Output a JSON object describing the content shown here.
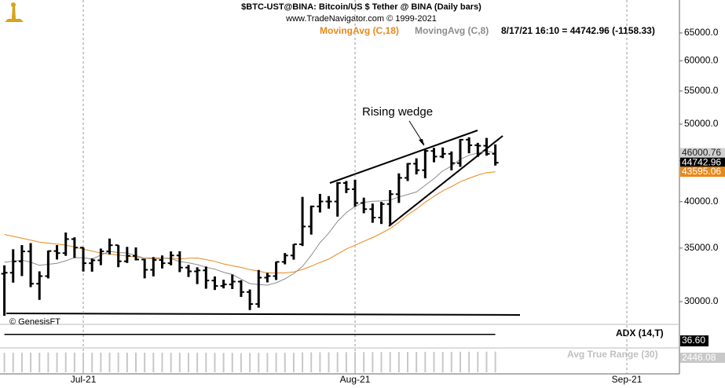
{
  "chart_data": {
    "type": "ohlc",
    "title": "$BTC-UST@BINA:  Bitcoin/US $ Tether @ BINA  (Daily bars)",
    "subtitle": "www.TradeNavigator.com © 1999-2021",
    "status": "8/17/21 16:10 = 44742.96 (-1158.33)",
    "annotation": "Rising wedge",
    "credit": "© GenesisFT",
    "categories": [
      null,
      null,
      null,
      null,
      null,
      null,
      null,
      null,
      null,
      null,
      null,
      null,
      null,
      null,
      null,
      null,
      null,
      null,
      null,
      null,
      null,
      null,
      null,
      null,
      null,
      null,
      null,
      null,
      null,
      null,
      null,
      null,
      null,
      null,
      null,
      null,
      null,
      null,
      null,
      null,
      null,
      null,
      null,
      null,
      null,
      null,
      null,
      null,
      null,
      null,
      null,
      null,
      null,
      null,
      null,
      null,
      null
    ],
    "open": [
      32505,
      32600,
      33680,
      34663,
      31584,
      32283,
      34700,
      34494,
      35911,
      35045,
      33502,
      33786,
      34669,
      35288,
      33690,
      34220,
      33863,
      32877,
      33815,
      33502,
      34259,
      33086,
      32729,
      32820,
      31874,
      31383,
      31520,
      31778,
      30839,
      29790,
      32144,
      32287,
      33634,
      34258,
      35381,
      37237,
      39456,
      40019,
      40016,
      42206,
      41461,
      39850,
      39146,
      38208,
      39723,
      40867,
      42836,
      44614,
      43795,
      46280,
      45543,
      45903,
      44695,
      47810,
      47054,
      46982,
      45901
    ],
    "high": [
      33298,
      34881,
      35298,
      35500,
      32730,
      34749,
      35297,
      36600,
      36100,
      35057,
      33977,
      34945,
      35967,
      35293,
      35118,
      35059,
      33929,
      34100,
      34262,
      34666,
      34678,
      33340,
      33114,
      33185,
      32249,
      31950,
      32435,
      31899,
      31063,
      32858,
      32591,
      33650,
      34500,
      35398,
      40550,
      39542,
      40900,
      40640,
      42316,
      42448,
      42599,
      40459,
      39780,
      39969,
      41350,
      43392,
      44700,
      45310,
      46454,
      46700,
      46743,
      46218,
      47886,
      48144,
      47373,
      48053,
      47160
    ],
    "low": [
      28805,
      31683,
      32286,
      31275,
      30151,
      32071,
      33862,
      34225,
      34017,
      32711,
      32699,
      33316,
      34357,
      33125,
      33532,
      33777,
      32077,
      32261,
      33004,
      33306,
      32658,
      32203,
      31550,
      31133,
      31020,
      31164,
      31108,
      30407,
      29278,
      29482,
      31708,
      31924,
      33401,
      33851,
      35205,
      36383,
      38772,
      39200,
      38313,
      41000,
      39422,
      38690,
      37642,
      37508,
      37332,
      39853,
      42446,
      43261,
      42779,
      44800,
      45341,
      43770,
      44217,
      45971,
      45500,
      45660,
      44376
    ],
    "close": [
      32600,
      33680,
      34663,
      31584,
      32283,
      34700,
      34494,
      35911,
      35045,
      33504,
      33786,
      34669,
      35286,
      33690,
      34220,
      33863,
      32877,
      33815,
      33502,
      34259,
      33086,
      32729,
      32820,
      31880,
      31383,
      31520,
      31778,
      30839,
      29790,
      32144,
      32287,
      33634,
      34258,
      35381,
      37237,
      39457,
      40019,
      40016,
      42206,
      41461,
      39845,
      39147,
      38207,
      39723,
      40868,
      42836,
      44614,
      43792,
      46285,
      45543,
      45903,
      44695,
      47810,
      47054,
      46981,
      45901.29,
      44742.96
    ],
    "color": "#000000",
    "series": [
      {
        "name": "MovingAvg (C,18)",
        "color": "#e8891c",
        "values": [
          36400,
          36200,
          36000,
          35800,
          35600,
          35500,
          35400,
          35300,
          35100,
          34900,
          34700,
          34500,
          34400,
          34300,
          34200,
          34100,
          34000,
          33926,
          33976,
          34008,
          33921,
          33984,
          34014,
          33858,
          33685,
          33441,
          33259,
          33111,
          32889,
          32749,
          32582,
          32579,
          32581,
          32666,
          32908,
          33221,
          33583,
          33903,
          34410,
          34895,
          35285,
          35689,
          36068,
          36524,
          37029,
          37695,
          38519,
          39166,
          39944,
          40605,
          41252,
          41770,
          42357,
          42779,
          43166,
          43493,
          43595.06
        ]
      },
      {
        "name": "MovingAvg (C,8)",
        "color": "#8c8c8c",
        "values": [
          33600,
          33700,
          33800,
          33600,
          33300,
          33400,
          33500,
          33739,
          34045,
          34023,
          33913,
          34299,
          34674,
          34548,
          34514,
          34258,
          33987,
          34026,
          33990,
          33939,
          33664,
          33544,
          33369,
          33121,
          32934,
          32647,
          32432,
          32004,
          31592,
          31519,
          31453,
          31672,
          32031,
          32514,
          33196,
          34274,
          35552,
          36536,
          37776,
          38754,
          39453,
          39924,
          40045,
          40078,
          40184,
          40537,
          40838,
          41129,
          41934,
          42734,
          43696,
          44317,
          45185,
          45712,
          46008,
          46272,
          46000.76
        ]
      }
    ],
    "log_scale": true,
    "ylim": [
      28160,
      71470
    ],
    "yticks": [
      {
        "value": 30000,
        "label": "30000.0"
      },
      {
        "value": 35000,
        "label": "35000.0"
      },
      {
        "value": 40000,
        "label": "40000.0"
      },
      {
        "value": 45000,
        "label": "45000.0"
      },
      {
        "value": 50000,
        "label": "50000.0"
      },
      {
        "value": 55000,
        "label": "55000.0"
      },
      {
        "value": 60000,
        "label": "60000.0"
      },
      {
        "value": 65000,
        "label": "65000.0"
      }
    ],
    "xlim": [
      -0.5,
      77
    ],
    "xticks": [
      {
        "value": 9,
        "label": "Jul-21"
      },
      {
        "value": 40,
        "label": "Aug-21"
      },
      {
        "value": 71,
        "label": "Sep-21"
      }
    ],
    "x_grid": true,
    "adx": {
      "name": "ADX (14,T)",
      "value": 36.6,
      "value_label": "36.60",
      "ylim": [
        0,
        60
      ]
    },
    "atr": {
      "name": "Avg True Range (30)",
      "color": "#c8c8c8",
      "ylim": [
        0,
        2600
      ],
      "values": [
        2300,
        2310,
        2320,
        2330,
        2320,
        2330,
        2330,
        2340,
        2330,
        2330,
        2320,
        2320,
        2330,
        2330,
        2320,
        2320,
        2320,
        2320,
        2310,
        2310,
        2310,
        2300,
        2300,
        2300,
        2290,
        2290,
        2290,
        2280,
        2290,
        2300,
        2300,
        2310,
        2310,
        2310,
        2350,
        2360,
        2370,
        2370,
        2380,
        2380,
        2390,
        2390,
        2390,
        2390,
        2400,
        2400,
        2410,
        2410,
        2420,
        2420,
        2420,
        2420,
        2430,
        2430,
        2430,
        2440,
        2446.08
      ]
    }
  }
}
